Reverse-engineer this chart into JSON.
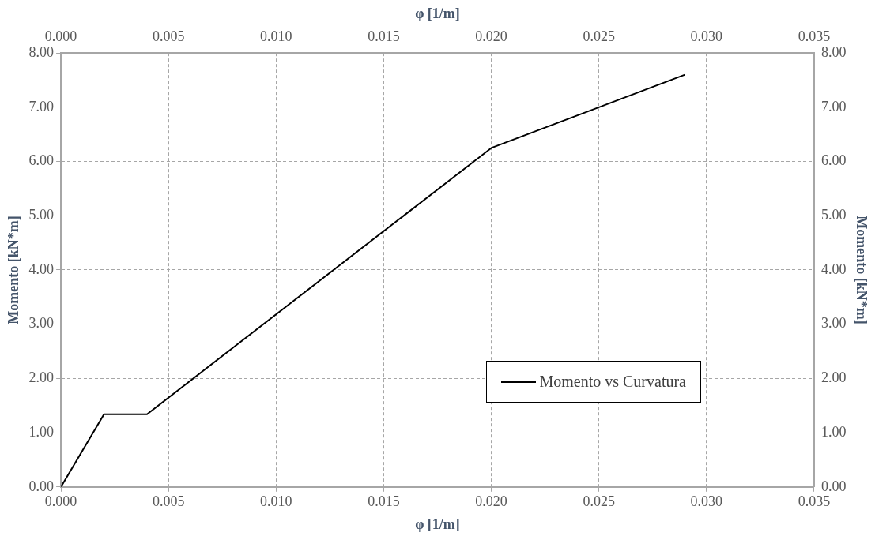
{
  "chart_data": {
    "type": "line",
    "xlabel": "φ [1/m]",
    "x2label": "φ [1/m]",
    "ylabel": "Momento [kN*m]",
    "y2label": "Momento [kN*m]",
    "series": [
      {
        "name": "Momento vs Curvatura",
        "color": "#000000",
        "x": [
          0,
          0.002,
          0.004,
          0.02,
          0.029
        ],
        "values": [
          0,
          1.34,
          1.34,
          6.25,
          7.6
        ]
      }
    ],
    "xlim": [
      0,
      0.035
    ],
    "x2lim": [
      0,
      0.035
    ],
    "ylim": [
      0,
      8
    ],
    "y2lim": [
      0,
      8
    ],
    "xticks": [
      {
        "value": 0,
        "label": "0.000"
      },
      {
        "value": 0.005,
        "label": "0.005"
      },
      {
        "value": 0.01,
        "label": "0.010"
      },
      {
        "value": 0.015,
        "label": "0.015"
      },
      {
        "value": 0.02,
        "label": "0.020"
      },
      {
        "value": 0.025,
        "label": "0.025"
      },
      {
        "value": 0.03,
        "label": "0.030"
      },
      {
        "value": 0.035,
        "label": "0.035"
      }
    ],
    "x2ticks": [
      {
        "value": 0,
        "label": "0.000"
      },
      {
        "value": 0.005,
        "label": "0.005"
      },
      {
        "value": 0.01,
        "label": "0.010"
      },
      {
        "value": 0.015,
        "label": "0.015"
      },
      {
        "value": 0.02,
        "label": "0.020"
      },
      {
        "value": 0.025,
        "label": "0.025"
      },
      {
        "value": 0.03,
        "label": "0.030"
      },
      {
        "value": 0.035,
        "label": "0.035"
      }
    ],
    "yticks": [
      {
        "value": 0,
        "label": "0.00"
      },
      {
        "value": 1,
        "label": "1.00"
      },
      {
        "value": 2,
        "label": "2.00"
      },
      {
        "value": 3,
        "label": "3.00"
      },
      {
        "value": 4,
        "label": "4.00"
      },
      {
        "value": 5,
        "label": "5.00"
      },
      {
        "value": 6,
        "label": "6.00"
      },
      {
        "value": 7,
        "label": "7.00"
      },
      {
        "value": 8,
        "label": "8.00"
      }
    ],
    "y2ticks": [
      {
        "value": 0,
        "label": "0.00"
      },
      {
        "value": 1,
        "label": "1.00"
      },
      {
        "value": 2,
        "label": "2.00"
      },
      {
        "value": 3,
        "label": "3.00"
      },
      {
        "value": 4,
        "label": "4.00"
      },
      {
        "value": 5,
        "label": "5.00"
      },
      {
        "value": 6,
        "label": "6.00"
      },
      {
        "value": 7,
        "label": "7.00"
      },
      {
        "value": 8,
        "label": "8.00"
      }
    ],
    "grid": true,
    "legend": "bottom right",
    "marker": "none",
    "line_style": "solid"
  }
}
